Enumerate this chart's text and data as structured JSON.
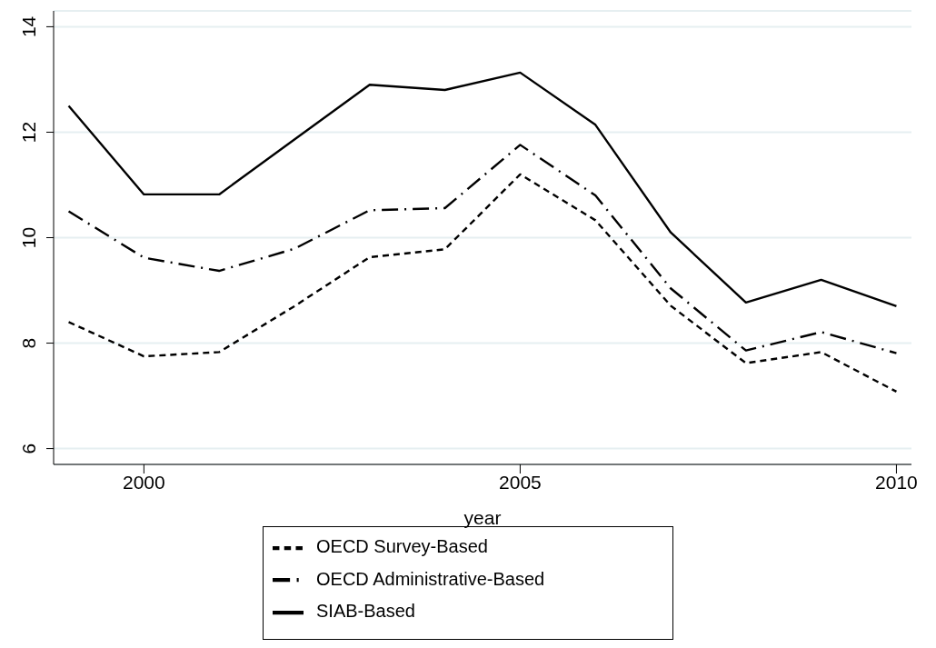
{
  "chart_data": {
    "type": "line",
    "xlabel": "year",
    "x": [
      1999,
      2000,
      2001,
      2002,
      2003,
      2004,
      2005,
      2006,
      2007,
      2008,
      2009,
      2010
    ],
    "series": [
      {
        "name": "OECD Survey-Based",
        "color": "#000000",
        "line_style": "dashed",
        "values": [
          8.4,
          7.75,
          7.83,
          8.7,
          9.63,
          9.78,
          11.2,
          10.33,
          8.71,
          7.62,
          7.83,
          7.08
        ]
      },
      {
        "name": "OECD Administrative-Based",
        "color": "#000000",
        "line_style": "dashdot",
        "values": [
          10.5,
          9.62,
          9.37,
          9.79,
          10.52,
          10.56,
          11.76,
          10.8,
          9.04,
          7.86,
          8.21,
          7.81
        ]
      },
      {
        "name": "SIAB-Based",
        "color": "#000000",
        "line_style": "solid",
        "values": [
          12.5,
          10.82,
          10.82,
          11.86,
          12.9,
          12.8,
          13.13,
          12.14,
          10.1,
          8.77,
          9.2,
          8.7
        ]
      }
    ],
    "xlim": [
      1998.8,
      2010.2
    ],
    "xticks": [
      2000,
      2005,
      2010
    ],
    "ylim": [
      5.7,
      14.3
    ],
    "yticks": [
      6,
      8,
      10,
      12,
      14
    ],
    "grid": "y",
    "legend": "bottom",
    "marker": "none"
  }
}
